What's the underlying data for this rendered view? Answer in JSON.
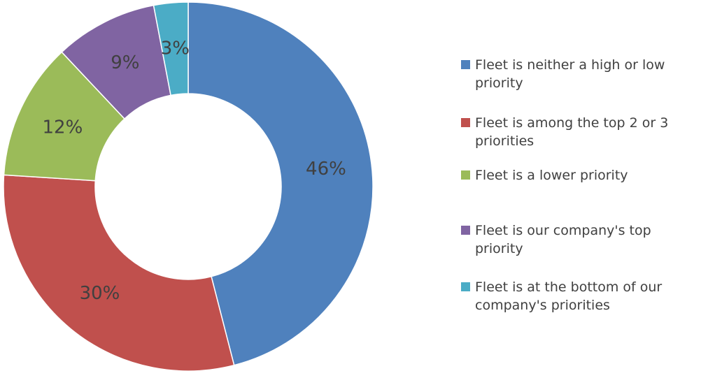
{
  "chart_data": {
    "type": "pie",
    "variant": "donut",
    "title": "",
    "legend_position": "right",
    "slices": [
      {
        "label": "Fleet is neither a high or low priority",
        "value": 46,
        "display": "46%",
        "color": "#4F81BD"
      },
      {
        "label": "Fleet is among the top 2 or 3 priorities",
        "value": 30,
        "display": "30%",
        "color": "#C0504D"
      },
      {
        "label": "Fleet is a lower priority",
        "value": 12,
        "display": "12%",
        "color": "#9BBB59"
      },
      {
        "label": "Fleet is our company's top priority",
        "value": 9,
        "display": "9%",
        "color": "#8064A2"
      },
      {
        "label": "Fleet is at the bottom of our company's priorities",
        "value": 3,
        "display": "3%",
        "color": "#4BACC6"
      }
    ]
  }
}
